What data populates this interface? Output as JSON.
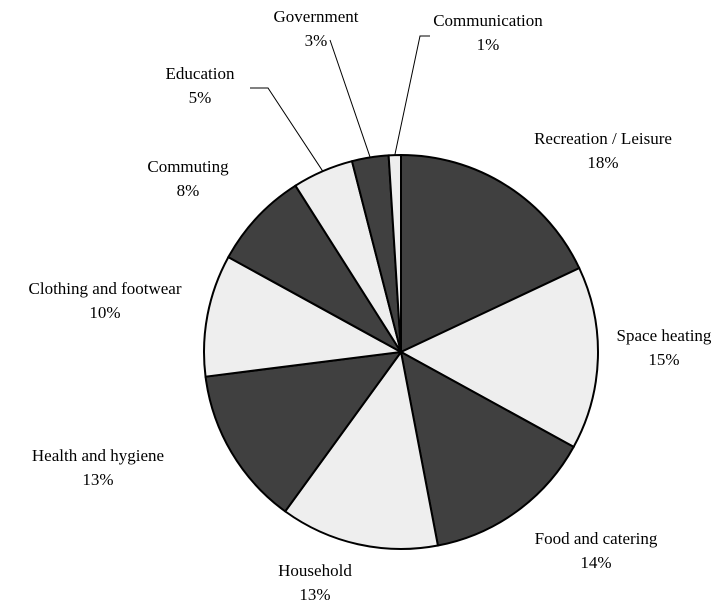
{
  "chart_data": {
    "type": "pie",
    "categories": [
      "Recreation / Leisure",
      "Space heating",
      "Food and catering",
      "Household",
      "Health and hygiene",
      "Clothing and footwear",
      "Commuting",
      "Education",
      "Government",
      "Communication"
    ],
    "values": [
      18,
      15,
      14,
      13,
      13,
      10,
      8,
      5,
      3,
      1
    ],
    "value_labels": [
      "18%",
      "15%",
      "14%",
      "13%",
      "13%",
      "10%",
      "8%",
      "5%",
      "3%",
      "1%"
    ],
    "colors": [
      "#404040",
      "#eeeeee",
      "#404040",
      "#eeeeee",
      "#404040",
      "#eeeeee",
      "#404040",
      "#eeeeee",
      "#404040",
      "#eeeeee"
    ]
  }
}
